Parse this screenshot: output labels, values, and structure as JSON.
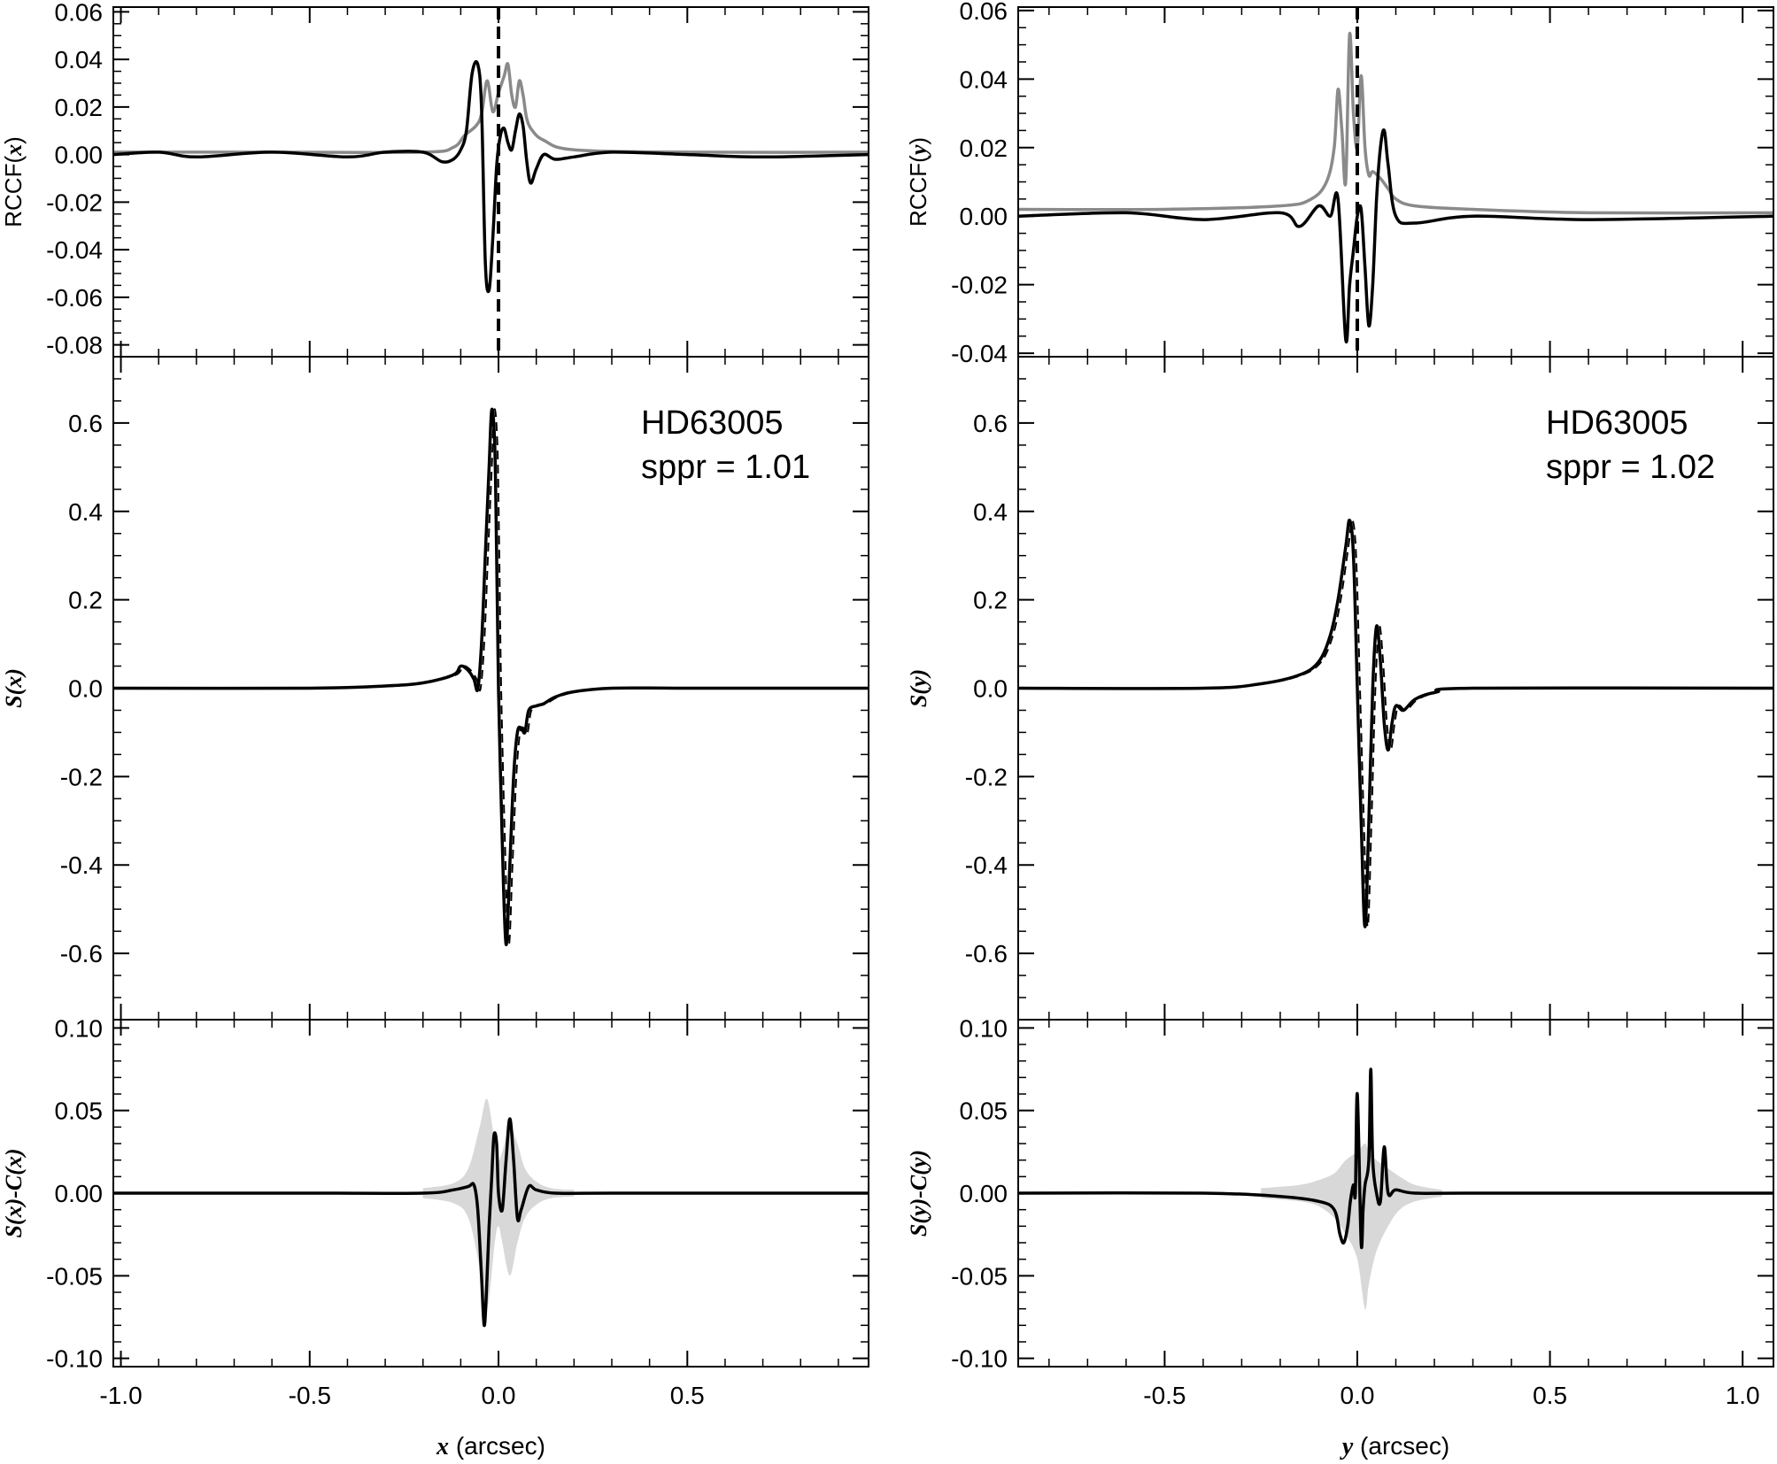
{
  "figure": {
    "columns": [
      {
        "var": "x",
        "xlim": [
          -1.02,
          0.98
        ],
        "xticks": [
          -1.0,
          -0.5,
          0.0,
          0.5
        ],
        "xtick_labels": [
          "-1.0",
          "-0.5",
          "0.0",
          "0.5"
        ],
        "xlabel_var": "x",
        "xlabel_unit": "(arcsec)",
        "annotation": {
          "star": "HD63005",
          "sppr": "sppr = 1.01"
        },
        "panels": {
          "rccf": {
            "ylabel_prefix": "RCCF(",
            "ylabel_var": "x",
            "ylabel_suffix": ")",
            "ylim": [
              -0.085,
              0.062
            ],
            "yticks": [
              -0.08,
              -0.06,
              -0.04,
              -0.02,
              0.0,
              0.02,
              0.04,
              0.06
            ],
            "ytick_labels": [
              "-0.08",
              "-0.06",
              "-0.04",
              "-0.02",
              "0.00",
              "0.02",
              "0.04",
              "0.06"
            ]
          },
          "signal": {
            "ylabel_var": "S(x)",
            "ylim": [
              -0.75,
              0.75
            ],
            "yticks": [
              -0.6,
              -0.4,
              -0.2,
              0.0,
              0.2,
              0.4,
              0.6
            ],
            "ytick_labels": [
              "-0.6",
              "-0.4",
              "-0.2",
              "0.0",
              "0.2",
              "0.4",
              "0.6"
            ]
          },
          "residual": {
            "ylabel_var": "S(x)-C(x)",
            "ylim": [
              -0.105,
              0.105
            ],
            "yticks": [
              -0.1,
              -0.05,
              0.0,
              0.05,
              0.1
            ],
            "ytick_labels": [
              "-0.10",
              "-0.05",
              "0.00",
              "0.05",
              "0.10"
            ]
          }
        }
      },
      {
        "var": "y",
        "xlim": [
          -0.88,
          1.08
        ],
        "xticks": [
          -0.5,
          0.0,
          0.5,
          1.0
        ],
        "xtick_labels": [
          "-0.5",
          "0.0",
          "0.5",
          "1.0"
        ],
        "xlabel_var": "y",
        "xlabel_unit": "(arcsec)",
        "annotation": {
          "star": "HD63005",
          "sppr": "sppr = 1.02"
        },
        "panels": {
          "rccf": {
            "ylabel_prefix": "RCCF(",
            "ylabel_var": "y",
            "ylabel_suffix": ")",
            "ylim": [
              -0.041,
              0.061
            ],
            "yticks": [
              -0.04,
              -0.02,
              0.0,
              0.02,
              0.04,
              0.06
            ],
            "ytick_labels": [
              "-0.04",
              "-0.02",
              "0.00",
              "0.02",
              "0.04",
              "0.06"
            ]
          },
          "signal": {
            "ylabel_var": "S(y)",
            "ylim": [
              -0.75,
              0.75
            ],
            "yticks": [
              -0.6,
              -0.4,
              -0.2,
              0.0,
              0.2,
              0.4,
              0.6
            ],
            "ytick_labels": [
              "-0.6",
              "-0.4",
              "-0.2",
              "0.0",
              "0.2",
              "0.4",
              "0.6"
            ]
          },
          "residual": {
            "ylabel_var": "S(y)-C(y)",
            "ylim": [
              -0.105,
              0.105
            ],
            "yticks": [
              -0.1,
              -0.05,
              0.0,
              0.05,
              0.1
            ],
            "ytick_labels": [
              "-0.10",
              "-0.05",
              "0.00",
              "0.05",
              "0.10"
            ]
          }
        }
      }
    ]
  },
  "chart_data": [
    {
      "type": "line",
      "panel": "RCCF(x)",
      "xlim": [
        -1.02,
        0.98
      ],
      "ylim": [
        -0.085,
        0.062
      ],
      "vertical_dashed_line_x": 0.0,
      "series": [
        {
          "color": "#000000",
          "x": [
            -1.02,
            -0.9,
            -0.8,
            -0.6,
            -0.4,
            -0.3,
            -0.2,
            -0.15,
            -0.12,
            -0.1,
            -0.085,
            -0.07,
            -0.055,
            -0.045,
            -0.035,
            -0.025,
            -0.015,
            -0.005,
            0.005,
            0.015,
            0.025,
            0.035,
            0.045,
            0.055,
            0.065,
            0.075,
            0.085,
            0.1,
            0.12,
            0.15,
            0.2,
            0.3,
            0.5,
            0.7,
            0.98
          ],
          "y": [
            0.0,
            0.001,
            -0.001,
            0.001,
            -0.001,
            0.001,
            0.001,
            -0.003,
            -0.002,
            0.002,
            0.01,
            0.034,
            0.038,
            0.02,
            -0.045,
            -0.057,
            -0.035,
            -0.005,
            0.008,
            0.011,
            0.005,
            0.002,
            0.01,
            0.017,
            0.012,
            -0.003,
            -0.012,
            -0.006,
            0.0,
            -0.002,
            -0.001,
            0.001,
            0.0,
            -0.001,
            0.0
          ]
        },
        {
          "color": "#8a8a8a",
          "x": [
            -1.02,
            -0.6,
            -0.2,
            -0.12,
            -0.09,
            -0.06,
            -0.045,
            -0.03,
            -0.015,
            0.0,
            0.015,
            0.025,
            0.035,
            0.045,
            0.055,
            0.065,
            0.075,
            0.09,
            0.12,
            0.2,
            0.5,
            0.98
          ],
          "y": [
            0.001,
            0.001,
            0.001,
            0.003,
            0.008,
            0.012,
            0.017,
            0.031,
            0.018,
            0.026,
            0.033,
            0.038,
            0.025,
            0.02,
            0.031,
            0.025,
            0.015,
            0.01,
            0.006,
            0.002,
            0.001,
            0.001
          ]
        }
      ]
    },
    {
      "type": "line",
      "panel": "S(x)",
      "xlim": [
        -1.02,
        0.98
      ],
      "ylim": [
        -0.75,
        0.75
      ],
      "series": [
        {
          "color": "#000000",
          "x": [
            -1.02,
            -0.5,
            -0.3,
            -0.2,
            -0.12,
            -0.1,
            -0.08,
            -0.065,
            -0.055,
            -0.045,
            -0.035,
            -0.025,
            -0.018,
            -0.01,
            -0.005,
            0.0,
            0.01,
            0.02,
            0.03,
            0.04,
            0.05,
            0.06,
            0.07,
            0.08,
            0.1,
            0.12,
            0.15,
            0.2,
            0.3,
            0.5,
            0.98
          ],
          "y": [
            0.0,
            0.0,
            0.005,
            0.012,
            0.03,
            0.05,
            0.04,
            0.02,
            -0.002,
            0.1,
            0.3,
            0.5,
            0.63,
            0.55,
            0.3,
            0.0,
            -0.35,
            -0.58,
            -0.4,
            -0.2,
            -0.1,
            -0.09,
            -0.1,
            -0.05,
            -0.04,
            -0.035,
            -0.02,
            -0.008,
            0.0,
            0.0,
            0.0
          ]
        }
      ]
    },
    {
      "type": "area+line",
      "panel": "S(x)-C(x)",
      "xlim": [
        -1.02,
        0.98
      ],
      "ylim": [
        -0.105,
        0.105
      ],
      "band": {
        "color": "#d8d8d8",
        "x": [
          -0.2,
          -0.12,
          -0.08,
          -0.05,
          -0.03,
          -0.01,
          0.0,
          0.01,
          0.03,
          0.05,
          0.07,
          0.1,
          0.14,
          0.2
        ],
        "upper": [
          0.003,
          0.006,
          0.015,
          0.04,
          0.057,
          0.03,
          0.02,
          0.025,
          0.04,
          0.03,
          0.015,
          0.007,
          0.003,
          0.002
        ],
        "lower": [
          -0.003,
          -0.006,
          -0.015,
          -0.045,
          -0.07,
          -0.03,
          -0.02,
          -0.03,
          -0.05,
          -0.03,
          -0.015,
          -0.007,
          -0.003,
          -0.002
        ]
      },
      "series": [
        {
          "color": "#000000",
          "x": [
            -1.02,
            -0.5,
            -0.2,
            -0.12,
            -0.08,
            -0.065,
            -0.055,
            -0.045,
            -0.038,
            -0.032,
            -0.025,
            -0.018,
            -0.012,
            -0.005,
            0.0,
            0.01,
            0.02,
            0.03,
            0.04,
            0.05,
            0.06,
            0.08,
            0.1,
            0.15,
            0.3,
            0.98
          ],
          "y": [
            0.0,
            0.0,
            0.0,
            0.002,
            0.004,
            0.005,
            -0.01,
            -0.05,
            -0.08,
            -0.06,
            -0.02,
            0.01,
            0.035,
            0.03,
            0.0,
            -0.01,
            0.02,
            0.045,
            0.02,
            -0.015,
            -0.01,
            0.004,
            0.002,
            0.0,
            0.0,
            0.0
          ]
        }
      ]
    },
    {
      "type": "line",
      "panel": "RCCF(y)",
      "xlim": [
        -0.88,
        1.08
      ],
      "ylim": [
        -0.041,
        0.061
      ],
      "vertical_dashed_line_x": 0.0,
      "series": [
        {
          "color": "#000000",
          "x": [
            -0.88,
            -0.6,
            -0.4,
            -0.2,
            -0.15,
            -0.1,
            -0.07,
            -0.05,
            -0.03,
            -0.02,
            -0.01,
            0.0,
            0.01,
            0.02,
            0.03,
            0.04,
            0.05,
            0.06,
            0.07,
            0.08,
            0.1,
            0.15,
            0.3,
            0.6,
            1.08
          ],
          "y": [
            0.0,
            0.001,
            -0.001,
            0.001,
            -0.003,
            0.003,
            0.0,
            0.005,
            -0.036,
            -0.02,
            -0.01,
            0.0,
            0.002,
            -0.015,
            -0.032,
            -0.02,
            0.005,
            0.02,
            0.025,
            0.015,
            0.0,
            -0.002,
            0.0,
            -0.001,
            0.0
          ]
        },
        {
          "color": "#8a8a8a",
          "x": [
            -0.88,
            -0.5,
            -0.2,
            -0.12,
            -0.08,
            -0.06,
            -0.05,
            -0.04,
            -0.03,
            -0.02,
            -0.01,
            0.0,
            0.01,
            0.02,
            0.03,
            0.04,
            0.06,
            0.08,
            0.1,
            0.15,
            0.3,
            0.6,
            1.08
          ],
          "y": [
            0.002,
            0.002,
            0.003,
            0.005,
            0.01,
            0.02,
            0.037,
            0.025,
            0.01,
            0.053,
            0.03,
            0.02,
            0.041,
            0.02,
            0.012,
            0.013,
            0.011,
            0.008,
            0.005,
            0.003,
            0.002,
            0.001,
            0.001
          ]
        }
      ]
    },
    {
      "type": "line",
      "panel": "S(y)",
      "xlim": [
        -0.88,
        1.08
      ],
      "ylim": [
        -0.75,
        0.75
      ],
      "series": [
        {
          "color": "#000000",
          "x": [
            -0.88,
            -0.4,
            -0.25,
            -0.15,
            -0.1,
            -0.07,
            -0.05,
            -0.03,
            -0.02,
            -0.01,
            0.0,
            0.01,
            0.02,
            0.03,
            0.04,
            0.05,
            0.06,
            0.07,
            0.08,
            0.09,
            0.1,
            0.12,
            0.15,
            0.2,
            0.3,
            1.08
          ],
          "y": [
            0.0,
            0.0,
            0.01,
            0.03,
            0.06,
            0.12,
            0.2,
            0.32,
            0.38,
            0.3,
            0.0,
            -0.3,
            -0.54,
            -0.3,
            0.0,
            0.14,
            0.06,
            -0.08,
            -0.14,
            -0.08,
            -0.04,
            -0.05,
            -0.025,
            -0.01,
            0.0,
            0.0
          ]
        }
      ]
    },
    {
      "type": "area+line",
      "panel": "S(y)-C(y)",
      "xlim": [
        -0.88,
        1.08
      ],
      "ylim": [
        -0.105,
        0.105
      ],
      "band": {
        "color": "#d8d8d8",
        "x": [
          -0.25,
          -0.15,
          -0.1,
          -0.06,
          -0.03,
          0.0,
          0.02,
          0.03,
          0.05,
          0.08,
          0.11,
          0.15,
          0.22
        ],
        "upper": [
          0.003,
          0.005,
          0.008,
          0.012,
          0.02,
          0.025,
          0.03,
          0.025,
          0.02,
          0.015,
          0.01,
          0.005,
          0.002
        ],
        "lower": [
          -0.003,
          -0.005,
          -0.008,
          -0.015,
          -0.025,
          -0.04,
          -0.07,
          -0.055,
          -0.035,
          -0.02,
          -0.01,
          -0.005,
          -0.002
        ]
      },
      "series": [
        {
          "color": "#000000",
          "x": [
            -0.88,
            -0.4,
            -0.2,
            -0.1,
            -0.06,
            -0.045,
            -0.035,
            -0.025,
            -0.018,
            -0.01,
            -0.005,
            0.0,
            0.01,
            0.015,
            0.02,
            0.03,
            0.035,
            0.04,
            0.05,
            0.06,
            0.07,
            0.08,
            0.1,
            0.15,
            0.3,
            1.08
          ],
          "y": [
            0.0,
            0.0,
            -0.002,
            -0.005,
            -0.01,
            -0.025,
            -0.03,
            -0.02,
            -0.005,
            0.005,
            0.0,
            0.06,
            -0.03,
            -0.01,
            0.005,
            0.02,
            0.075,
            0.02,
            0.0,
            -0.005,
            0.028,
            0.0,
            0.002,
            0.0,
            0.0,
            0.0
          ]
        }
      ]
    }
  ]
}
